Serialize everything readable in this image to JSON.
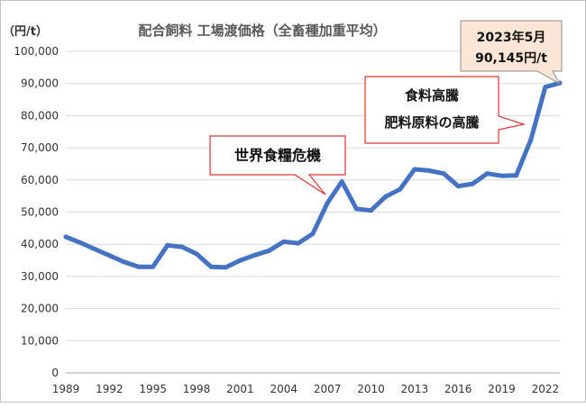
{
  "chart_data": {
    "type": "line",
    "title": "配合飼料 工場渡価格（全畜種加重平均）",
    "ylabel": "（円/t）",
    "xlabel": "",
    "ylim": [
      0,
      100000
    ],
    "yticks": [
      "0",
      "10,000",
      "20,000",
      "30,000",
      "40,000",
      "50,000",
      "60,000",
      "70,000",
      "80,000",
      "90,000",
      "100,000"
    ],
    "xticks": [
      "1989",
      "1992",
      "1995",
      "1998",
      "2001",
      "2004",
      "2007",
      "2010",
      "2013",
      "2016",
      "2019",
      "2022"
    ],
    "grid": true,
    "legend": "none",
    "line_color": "#4472c4",
    "x": [
      1989,
      1990,
      1991,
      1992,
      1993,
      1994,
      1995,
      1996,
      1997,
      1998,
      1999,
      2000,
      2001,
      2002,
      2003,
      2004,
      2005,
      2006,
      2007,
      2008,
      2009,
      2010,
      2011,
      2012,
      2013,
      2014,
      2015,
      2016,
      2017,
      2018,
      2019,
      2020,
      2021,
      2022,
      2023
    ],
    "values": [
      42300,
      40500,
      38500,
      36500,
      34500,
      33000,
      33000,
      39700,
      39200,
      37000,
      33000,
      32800,
      35000,
      36600,
      38000,
      40800,
      40300,
      43300,
      52800,
      59500,
      51000,
      50500,
      54800,
      57100,
      63300,
      62900,
      62000,
      58100,
      58800,
      62000,
      61300,
      61400,
      72500,
      88900,
      90145
    ],
    "annotations": {
      "crisis": "世界食糧危機",
      "surge_line1": "食料高騰",
      "surge_line2": "肥料原料の高騰",
      "latest_line1": "2023年5月",
      "latest_line2": "90,145円/t"
    }
  }
}
